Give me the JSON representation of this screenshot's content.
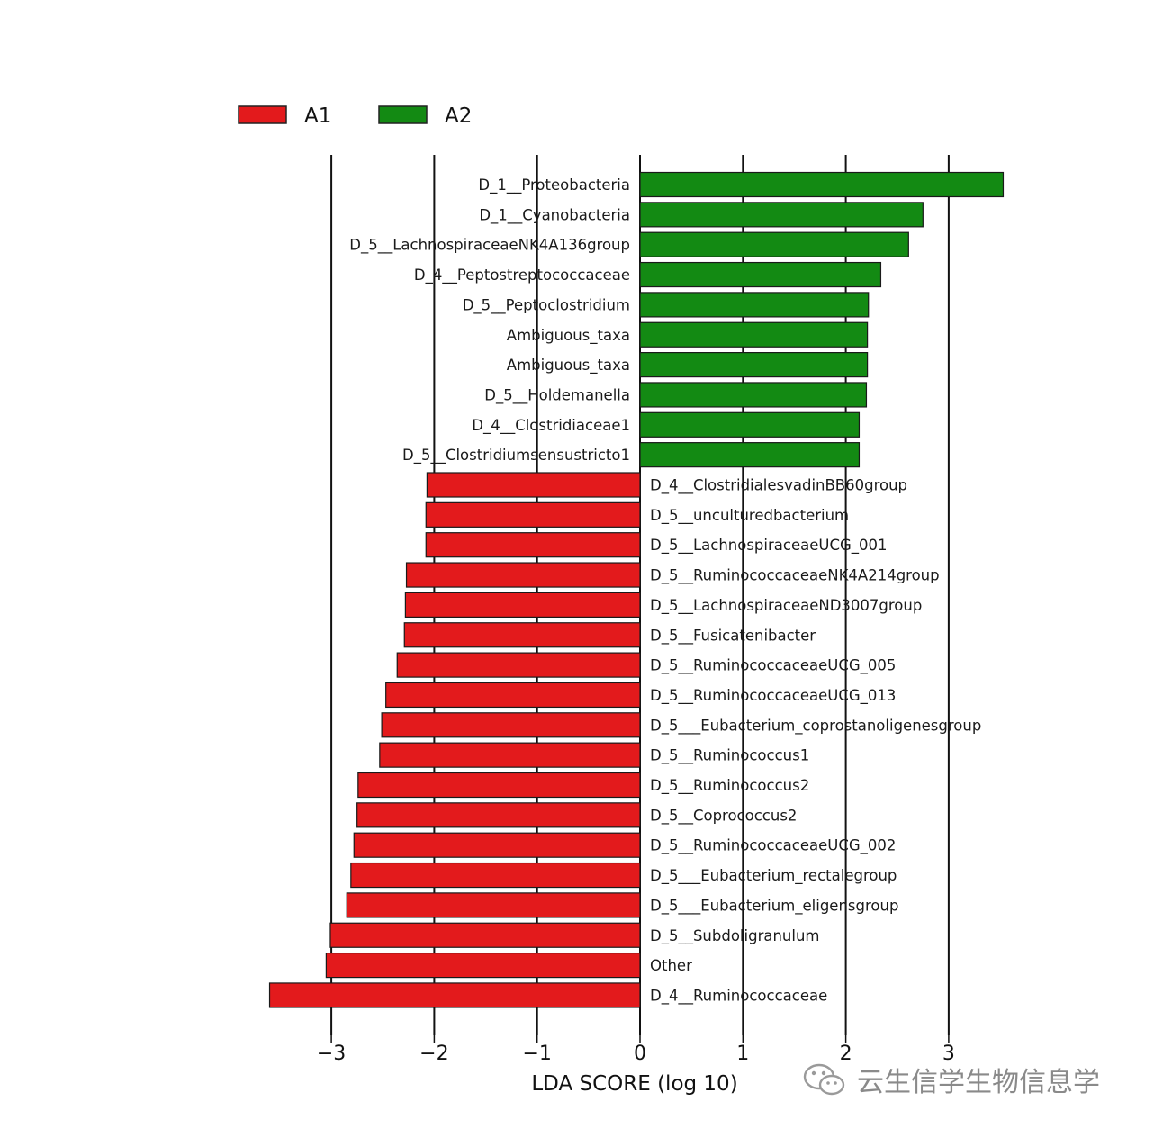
{
  "chart_data": {
    "type": "bar",
    "orientation": "horizontal",
    "xlabel": "LDA SCORE (log 10)",
    "ylabel": "",
    "title": "",
    "xlim": [
      -3.6,
      3.4
    ],
    "xticks": [
      -3,
      -2,
      -1,
      0,
      1,
      2,
      3
    ],
    "xtick_labels": [
      "−3",
      "−2",
      "−1",
      "0",
      "1",
      "2",
      "3"
    ],
    "grid": "vertical lines at integer ticks",
    "legend": {
      "placement": "top-left",
      "entries": [
        {
          "name": "A1",
          "color": "#e31a1c"
        },
        {
          "name": "A2",
          "color": "#138a13"
        }
      ]
    },
    "series": [
      {
        "name": "A2",
        "color": "#138a13",
        "categories": [
          "D_1__Proteobacteria",
          "D_1__Cyanobacteria",
          "D_5__LachnospiraceaeNK4A136group",
          "D_4__Peptostreptococcaceae",
          "D_5__Peptoclostridium",
          "Ambiguous_taxa",
          "Ambiguous_taxa",
          "D_5__Holdemanella",
          "D_4__Clostridiaceae1",
          "D_5__Clostridiumsensustricto1"
        ],
        "values": [
          3.53,
          2.75,
          2.61,
          2.34,
          2.22,
          2.21,
          2.21,
          2.2,
          2.13,
          2.13
        ]
      },
      {
        "name": "A1",
        "color": "#e31a1c",
        "categories": [
          "D_4__ClostridialesvadinBB60group",
          "D_5__unculturedbacterium",
          "D_5__LachnospiraceaeUCG_001",
          "D_5__RuminococcaceaeNK4A214group",
          "D_5__LachnospiraceaeND3007group",
          "D_5__Fusicatenibacter",
          "D_5__RuminococcaceaeUCG_005",
          "D_5__RuminococcaceaeUCG_013",
          "D_5___Eubacterium_coprostanoligenesgroup",
          "D_5__Ruminococcus1",
          "D_5__Ruminococcus2",
          "D_5__Coprococcus2",
          "D_5__RuminococcaceaeUCG_002",
          "D_5___Eubacterium_rectalegroup",
          "D_5___Eubacterium_eligensgroup",
          "D_5__Subdoligranulum",
          "Other",
          "D_4__Ruminococcaceae"
        ],
        "values": [
          -2.07,
          -2.08,
          -2.08,
          -2.27,
          -2.28,
          -2.29,
          -2.36,
          -2.47,
          -2.51,
          -2.53,
          -2.74,
          -2.75,
          -2.78,
          -2.81,
          -2.85,
          -3.01,
          -3.05,
          -3.6
        ]
      }
    ]
  },
  "watermark": {
    "text": "云生信学生物信息学",
    "icon": "wechat-icon"
  }
}
